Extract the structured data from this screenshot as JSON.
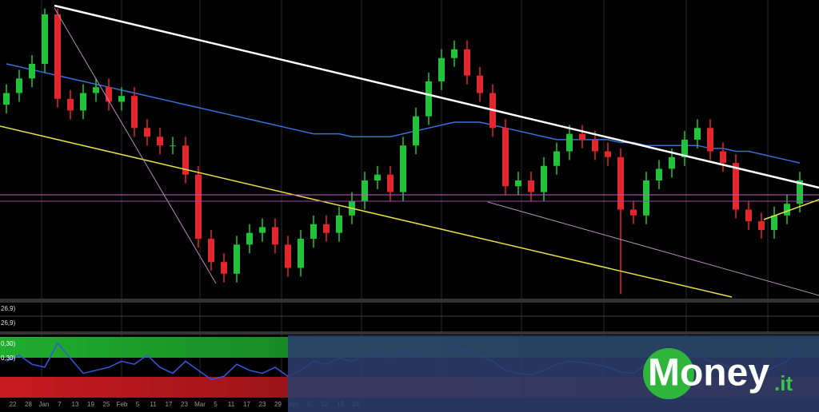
{
  "chart_data": [
    {
      "type": "candlestick",
      "legend_labels": [
        "26,9)",
        "26,9)"
      ],
      "date_labels": [
        "22",
        "28",
        "Jan",
        "7",
        "13",
        "19",
        "25",
        "Feb",
        "5",
        "11",
        "17",
        "23",
        "Mar",
        "5",
        "11",
        "17",
        "23",
        "29",
        "Apr",
        "6",
        "12",
        "18",
        "24"
      ],
      "open": [
        66,
        70,
        75,
        80,
        97,
        68,
        64,
        70,
        72,
        67,
        69,
        58,
        55,
        52,
        52,
        42,
        20,
        12,
        8,
        18,
        22,
        24,
        18,
        10,
        20,
        25,
        22,
        28,
        33,
        40,
        42,
        36,
        52,
        62,
        74,
        82,
        85,
        76,
        70,
        58,
        38,
        40,
        36,
        45,
        50,
        56,
        54,
        50,
        48,
        30,
        28,
        40,
        44,
        48,
        54,
        58,
        50,
        46,
        30,
        26,
        23,
        28,
        32
      ],
      "high": [
        73,
        78,
        83,
        99,
        99,
        71,
        73,
        75,
        75,
        72,
        72,
        61,
        58,
        55,
        55,
        45,
        23,
        15,
        21,
        25,
        27,
        27,
        21,
        23,
        28,
        28,
        31,
        36,
        43,
        45,
        45,
        55,
        65,
        77,
        85,
        88,
        88,
        79,
        73,
        61,
        43,
        43,
        48,
        53,
        59,
        59,
        57,
        53,
        51,
        33,
        43,
        47,
        51,
        57,
        61,
        61,
        53,
        49,
        33,
        29,
        31,
        35,
        43
      ],
      "low": [
        63,
        67,
        72,
        77,
        65,
        61,
        61,
        67,
        64,
        64,
        55,
        52,
        49,
        49,
        39,
        17,
        9,
        5,
        5,
        15,
        19,
        15,
        7,
        7,
        17,
        19,
        19,
        25,
        30,
        37,
        33,
        33,
        49,
        59,
        71,
        79,
        73,
        67,
        55,
        35,
        35,
        33,
        33,
        42,
        47,
        51,
        47,
        45,
        1,
        25,
        25,
        37,
        41,
        45,
        51,
        47,
        43,
        27,
        23,
        20,
        20,
        25,
        29
      ],
      "close": [
        70,
        75,
        80,
        97,
        68,
        64,
        70,
        72,
        67,
        69,
        58,
        55,
        52,
        52,
        42,
        20,
        12,
        8,
        18,
        22,
        24,
        18,
        10,
        20,
        25,
        22,
        28,
        33,
        40,
        42,
        36,
        52,
        62,
        74,
        82,
        85,
        76,
        70,
        58,
        38,
        40,
        36,
        45,
        50,
        56,
        54,
        50,
        48,
        30,
        28,
        40,
        44,
        48,
        54,
        58,
        50,
        46,
        30,
        26,
        23,
        28,
        32,
        40
      ],
      "series": [
        {
          "name": "MA",
          "color": "#3a6fd8",
          "values": [
            80,
            79,
            78,
            77,
            76,
            75,
            74,
            73,
            72,
            71,
            70,
            69,
            68,
            67,
            66,
            65,
            64,
            63,
            62,
            61,
            60,
            59,
            58,
            57,
            56,
            56,
            56,
            55,
            55,
            55,
            55,
            56,
            57,
            58,
            59,
            60,
            60,
            60,
            59,
            58,
            57,
            56,
            55,
            54,
            54,
            54,
            54,
            54,
            53,
            53,
            52,
            52,
            52,
            52,
            52,
            51,
            51,
            50,
            50,
            49,
            48,
            47,
            46
          ]
        }
      ],
      "up_color": "#23c23b",
      "down_color": "#e3262c",
      "ylim": [
        0,
        100
      ]
    },
    {
      "type": "line",
      "legend_labels": [
        "0,30)",
        "0,30)"
      ],
      "series": [
        {
          "name": "Oscillator",
          "color": "#3556e0",
          "values": [
            60,
            70,
            55,
            50,
            90,
            65,
            40,
            45,
            50,
            60,
            55,
            70,
            50,
            40,
            60,
            45,
            30,
            35,
            55,
            45,
            40,
            50,
            35,
            45,
            60,
            55,
            65,
            60,
            70,
            72,
            65,
            75,
            72,
            80,
            78,
            82,
            75,
            70,
            60,
            45,
            40,
            38,
            45,
            55,
            60,
            58,
            55,
            50,
            42,
            40,
            55,
            60,
            62,
            65,
            70,
            60,
            55,
            45,
            40,
            38,
            50,
            60,
            85
          ]
        }
      ],
      "ylim": [
        0,
        100
      ]
    }
  ],
  "logo": {
    "name": "Money",
    "suffix": ".it"
  }
}
